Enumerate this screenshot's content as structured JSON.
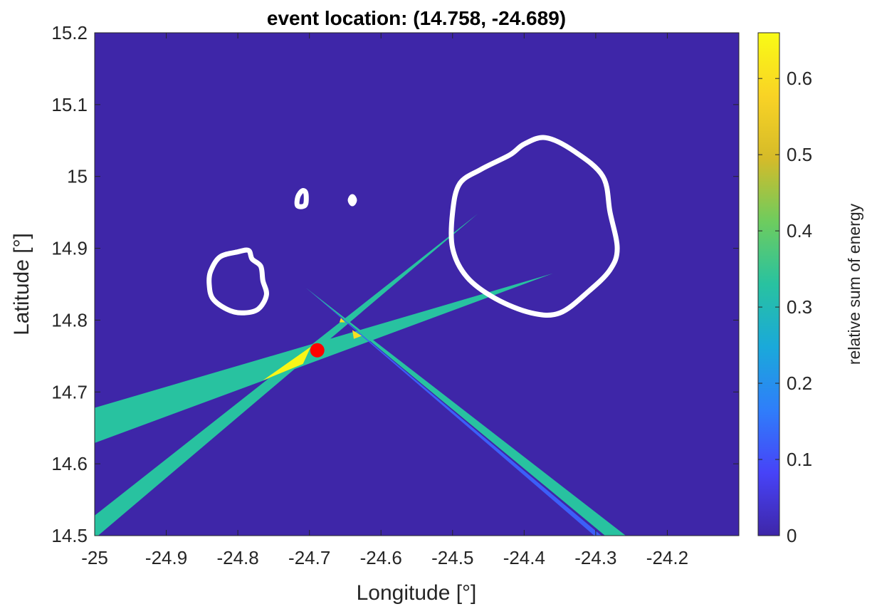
{
  "chart_data": {
    "type": "heatmap",
    "title": "event location: (14.758, -24.689)",
    "xlabel": "Longitude [°]",
    "ylabel": "Latitude [°]",
    "xlim": [
      -25.0,
      -24.1
    ],
    "ylim": [
      14.5,
      15.2
    ],
    "xticks": [
      -25,
      -24.9,
      -24.8,
      -24.7,
      -24.6,
      -24.5,
      -24.4,
      -24.3,
      -24.2
    ],
    "xtick_labels": [
      "-25",
      "-24.9",
      "-24.8",
      "-24.7",
      "-24.6",
      "-24.5",
      "-24.4",
      "-24.3",
      "-24.2"
    ],
    "yticks": [
      14.5,
      14.6,
      14.7,
      14.8,
      14.9,
      15.0,
      15.1,
      15.2
    ],
    "ytick_labels": [
      "14.5",
      "14.6",
      "14.7",
      "14.8",
      "14.9",
      "15",
      "15.1",
      "15.2"
    ],
    "colorbar": {
      "label": "relative sum of energy",
      "clim": [
        0,
        0.66
      ],
      "ticks": [
        0,
        0.1,
        0.2,
        0.3,
        0.4,
        0.5,
        0.6
      ],
      "tick_labels": [
        "0",
        "0.1",
        "0.2",
        "0.3",
        "0.4",
        "0.5",
        "0.6"
      ],
      "colormap": [
        "#3e26a8",
        "#4743f8",
        "#2f7efa",
        "#1aa9da",
        "#28c2a0",
        "#6ecc5e",
        "#d5bb29",
        "#f9d325",
        "#f9fb15"
      ]
    },
    "background_value": 0,
    "beams": [
      {
        "name": "beam-wide-ene",
        "value": 0.33,
        "polygon": [
          [
            -25.0,
            14.678
          ],
          [
            -24.36,
            14.865
          ],
          [
            -25.0,
            14.629
          ]
        ]
      },
      {
        "name": "beam-ne",
        "value": 0.33,
        "polygon": [
          [
            -25.0,
            14.528
          ],
          [
            -24.465,
            14.948
          ],
          [
            -25.0,
            14.496
          ]
        ]
      },
      {
        "name": "beam-se",
        "value": 0.33,
        "polygon": [
          [
            -24.705,
            14.845
          ],
          [
            -24.258,
            14.5
          ],
          [
            -24.287,
            14.5
          ]
        ]
      },
      {
        "name": "beam-se-edge",
        "value": 0.12,
        "polygon": [
          [
            -24.705,
            14.845
          ],
          [
            -24.292,
            14.5
          ],
          [
            -24.302,
            14.5
          ]
        ]
      },
      {
        "name": "overlap-main",
        "value": 0.65,
        "polygon": [
          [
            -24.765,
            14.716
          ],
          [
            -24.698,
            14.763
          ],
          [
            -24.709,
            14.739
          ]
        ]
      },
      {
        "name": "overlap-upper",
        "value": 0.6,
        "polygon": [
          [
            -24.64,
            14.786
          ],
          [
            -24.627,
            14.778
          ],
          [
            -24.638,
            14.774
          ]
        ]
      },
      {
        "name": "overlap-small",
        "value": 0.6,
        "polygon": [
          [
            -24.656,
            14.803
          ],
          [
            -24.65,
            14.797
          ],
          [
            -24.658,
            14.797
          ]
        ]
      }
    ],
    "coastlines": [
      {
        "name": "coastline-large-island",
        "points": [
          [
            -24.37,
            15.054
          ],
          [
            -24.33,
            15.035
          ],
          [
            -24.29,
            15.0
          ],
          [
            -24.28,
            14.95
          ],
          [
            -24.27,
            14.9
          ],
          [
            -24.28,
            14.87
          ],
          [
            -24.31,
            14.84
          ],
          [
            -24.35,
            14.81
          ],
          [
            -24.39,
            14.81
          ],
          [
            -24.44,
            14.83
          ],
          [
            -24.48,
            14.86
          ],
          [
            -24.5,
            14.9
          ],
          [
            -24.5,
            14.95
          ],
          [
            -24.49,
            14.99
          ],
          [
            -24.46,
            15.01
          ],
          [
            -24.42,
            15.03
          ],
          [
            -24.4,
            15.045
          ]
        ]
      },
      {
        "name": "coastline-small-island",
        "points": [
          [
            -24.825,
            14.888
          ],
          [
            -24.8,
            14.895
          ],
          [
            -24.785,
            14.897
          ],
          [
            -24.78,
            14.885
          ],
          [
            -24.768,
            14.875
          ],
          [
            -24.765,
            14.855
          ],
          [
            -24.76,
            14.835
          ],
          [
            -24.772,
            14.815
          ],
          [
            -24.795,
            14.81
          ],
          [
            -24.815,
            14.815
          ],
          [
            -24.835,
            14.83
          ],
          [
            -24.84,
            14.85
          ],
          [
            -24.838,
            14.868
          ]
        ]
      },
      {
        "name": "coastline-islet-1",
        "points": [
          [
            -24.71,
            14.98
          ],
          [
            -24.705,
            14.977
          ],
          [
            -24.705,
            14.962
          ],
          [
            -24.71,
            14.958
          ],
          [
            -24.717,
            14.96
          ],
          [
            -24.716,
            14.972
          ]
        ]
      },
      {
        "name": "coastline-islet-2",
        "points": [
          [
            -24.64,
            14.972
          ],
          [
            -24.637,
            14.967
          ],
          [
            -24.64,
            14.962
          ],
          [
            -24.643,
            14.967
          ]
        ]
      }
    ],
    "event_marker": {
      "lat": 14.758,
      "lon": -24.689,
      "color": "#ff0000"
    },
    "coastline_color": "#ffffff"
  }
}
